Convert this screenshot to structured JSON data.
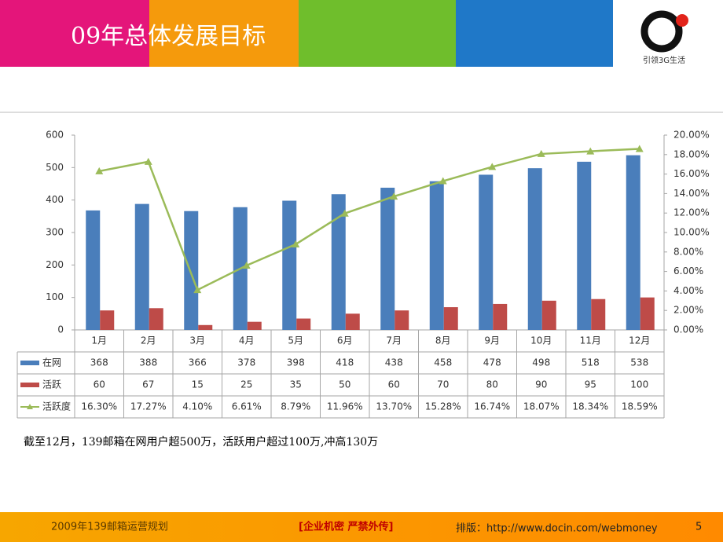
{
  "slide": {
    "title": "09年总体发展目标",
    "logo_text": "引领3G生活",
    "note": "截至12月，139邮箱在网用户超500万，活跃用户超过100万,冲高130万",
    "footer_left": "2009年139邮箱运营规划",
    "footer_center": "[企业机密  严禁外传]",
    "footer_right": "排版：http://www.docin.com/webmoney",
    "page_number": "5"
  },
  "chart_data": {
    "type": "bar",
    "categories": [
      "1月",
      "2月",
      "3月",
      "4月",
      "5月",
      "6月",
      "7月",
      "8月",
      "9月",
      "10月",
      "11月",
      "12月"
    ],
    "series": [
      {
        "name": "在网",
        "color": "#4a7ebb",
        "values": [
          368,
          388,
          366,
          378,
          398,
          418,
          438,
          458,
          478,
          498,
          518,
          538
        ]
      },
      {
        "name": "活跃",
        "color": "#be4b48",
        "values": [
          60,
          67,
          15,
          25,
          35,
          50,
          60,
          70,
          80,
          90,
          95,
          100
        ]
      },
      {
        "name": "活跃度",
        "type": "line",
        "axis": "y2",
        "color": "#9bbb59",
        "values": [
          16.3,
          17.27,
          4.1,
          6.61,
          8.79,
          11.96,
          13.7,
          15.28,
          16.74,
          18.07,
          18.34,
          18.59
        ],
        "value_labels": [
          "16.30%",
          "17.27%",
          "4.10%",
          "6.61%",
          "8.79%",
          "11.96%",
          "13.70%",
          "15.28%",
          "16.74%",
          "18.07%",
          "18.34%",
          "18.59%"
        ]
      }
    ],
    "ylim": [
      0,
      600
    ],
    "yticks": [
      0,
      100,
      200,
      300,
      400,
      500,
      600
    ],
    "y2lim": [
      0,
      20
    ],
    "y2ticks": [
      {
        "value": 0,
        "label": "0.00%"
      },
      {
        "value": 2,
        "label": "2.00%"
      },
      {
        "value": 4,
        "label": "4.00%"
      },
      {
        "value": 6,
        "label": "6.00%"
      },
      {
        "value": 8,
        "label": "8.00%"
      },
      {
        "value": 10,
        "label": "10.00%"
      },
      {
        "value": 12,
        "label": "12.00%"
      },
      {
        "value": 14,
        "label": "14.00%"
      },
      {
        "value": 16,
        "label": "16.00%"
      },
      {
        "value": 18,
        "label": "18.00%"
      },
      {
        "value": 20,
        "label": "20.00%"
      }
    ]
  }
}
